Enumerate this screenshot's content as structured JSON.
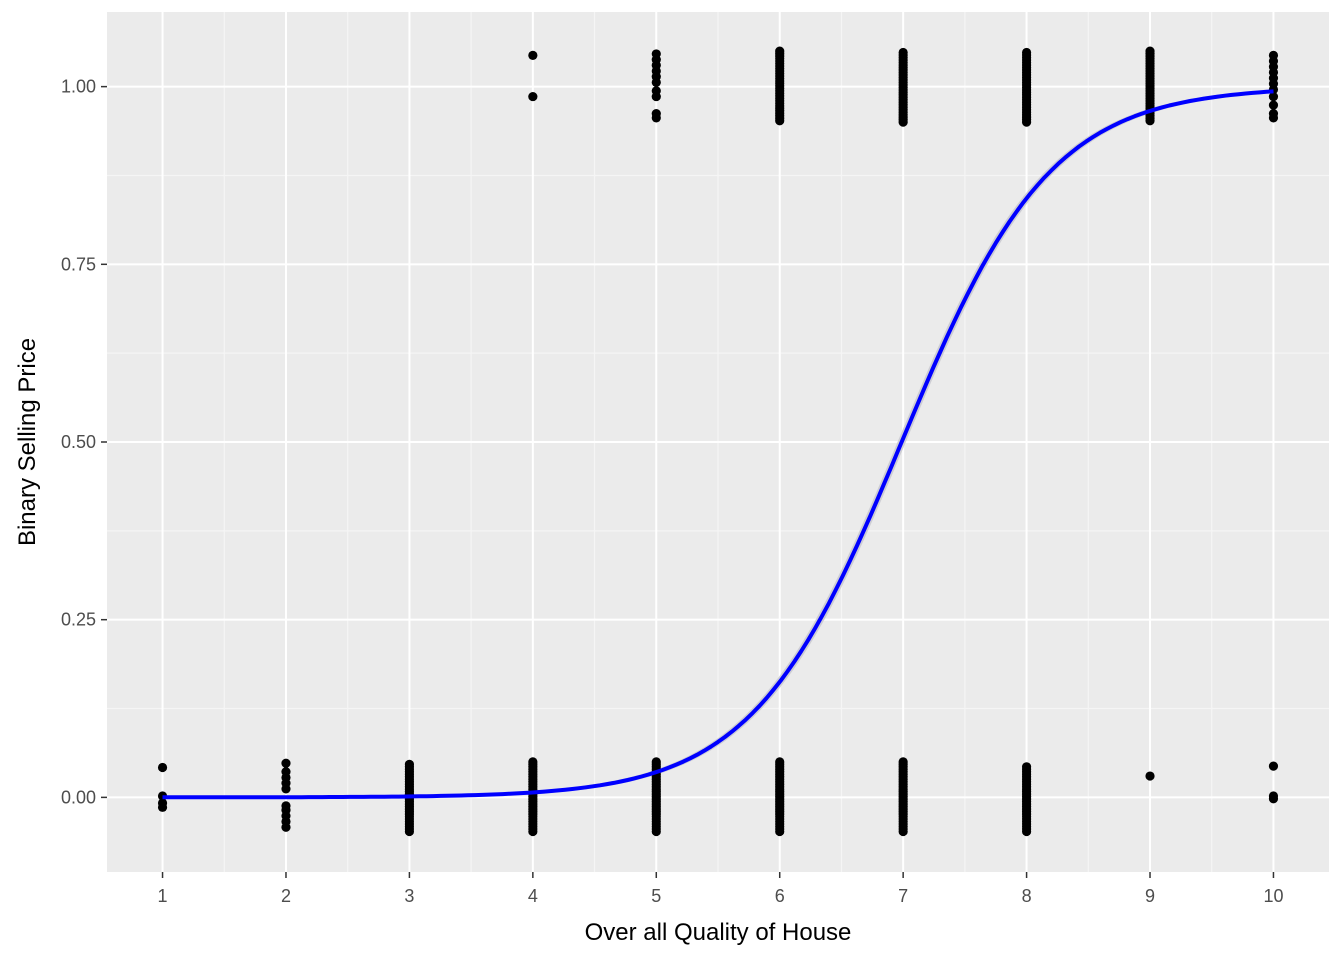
{
  "chart_data": {
    "type": "scatter",
    "title": "",
    "xlabel": "Over all Quality of House",
    "ylabel": "Binary Selling Price",
    "xlim": [
      0.55,
      10.45
    ],
    "ylim": [
      -0.105,
      1.105
    ],
    "x_ticks": [
      1,
      2,
      3,
      4,
      5,
      6,
      7,
      8,
      9,
      10
    ],
    "y_ticks": [
      0.0,
      0.25,
      0.5,
      0.75,
      1.0
    ],
    "y_tick_labels": [
      "0.00",
      "0.25",
      "0.50",
      "0.75",
      "1.00"
    ],
    "grid": true,
    "legend": "none",
    "colors": {
      "panel_background": "#ebebeb",
      "grid_major": "#ffffff",
      "grid_minor": "#f5f5f5",
      "points": "#000000",
      "curve": "#0000ff",
      "ribbon": "#c8c8d0"
    },
    "points": [
      {
        "x": 1,
        "y": 0,
        "jitter": [
          0.042,
          0.002,
          -0.008,
          -0.014
        ]
      },
      {
        "x": 2,
        "y": 0,
        "jitter": [
          0.048,
          0.036,
          0.028,
          0.02,
          0.012,
          -0.012,
          -0.018,
          -0.026,
          -0.034,
          -0.042
        ]
      },
      {
        "x": 3,
        "y": 0,
        "jitter_range": [
          -0.048,
          0.048
        ]
      },
      {
        "x": 4,
        "y": 0,
        "jitter_range": [
          -0.048,
          0.05
        ]
      },
      {
        "x": 4,
        "y": 1,
        "jitter": [
          0.044,
          -0.014
        ]
      },
      {
        "x": 5,
        "y": 0,
        "jitter_range": [
          -0.048,
          0.05
        ]
      },
      {
        "x": 5,
        "y": 1,
        "jitter": [
          0.046,
          0.038,
          0.03,
          0.022,
          0.014,
          0.006,
          -0.006,
          -0.014,
          -0.038,
          -0.044
        ]
      },
      {
        "x": 6,
        "y": 0,
        "jitter_range": [
          -0.048,
          0.05
        ]
      },
      {
        "x": 6,
        "y": 1,
        "jitter_range": [
          -0.048,
          0.05
        ]
      },
      {
        "x": 7,
        "y": 0,
        "jitter_range": [
          -0.048,
          0.05
        ]
      },
      {
        "x": 7,
        "y": 1,
        "jitter_range": [
          -0.05,
          0.05
        ]
      },
      {
        "x": 8,
        "y": 0,
        "jitter_range": [
          -0.048,
          0.046
        ]
      },
      {
        "x": 8,
        "y": 1,
        "jitter_range": [
          -0.05,
          0.05
        ]
      },
      {
        "x": 9,
        "y": 0,
        "jitter": [
          0.03
        ]
      },
      {
        "x": 9,
        "y": 1,
        "jitter_range": [
          -0.048,
          0.05
        ]
      },
      {
        "x": 10,
        "y": 0,
        "jitter": [
          0.044,
          0.002,
          -0.002
        ]
      },
      {
        "x": 10,
        "y": 1,
        "jitter": [
          0.044,
          0.036,
          0.028,
          0.02,
          0.012,
          0.004,
          -0.004,
          -0.014,
          -0.026,
          -0.038,
          -0.044
        ]
      }
    ],
    "fit": {
      "model": "logistic",
      "intercept": -11.6,
      "slope": 1.66,
      "band_halfwidth": 0.012
    }
  }
}
